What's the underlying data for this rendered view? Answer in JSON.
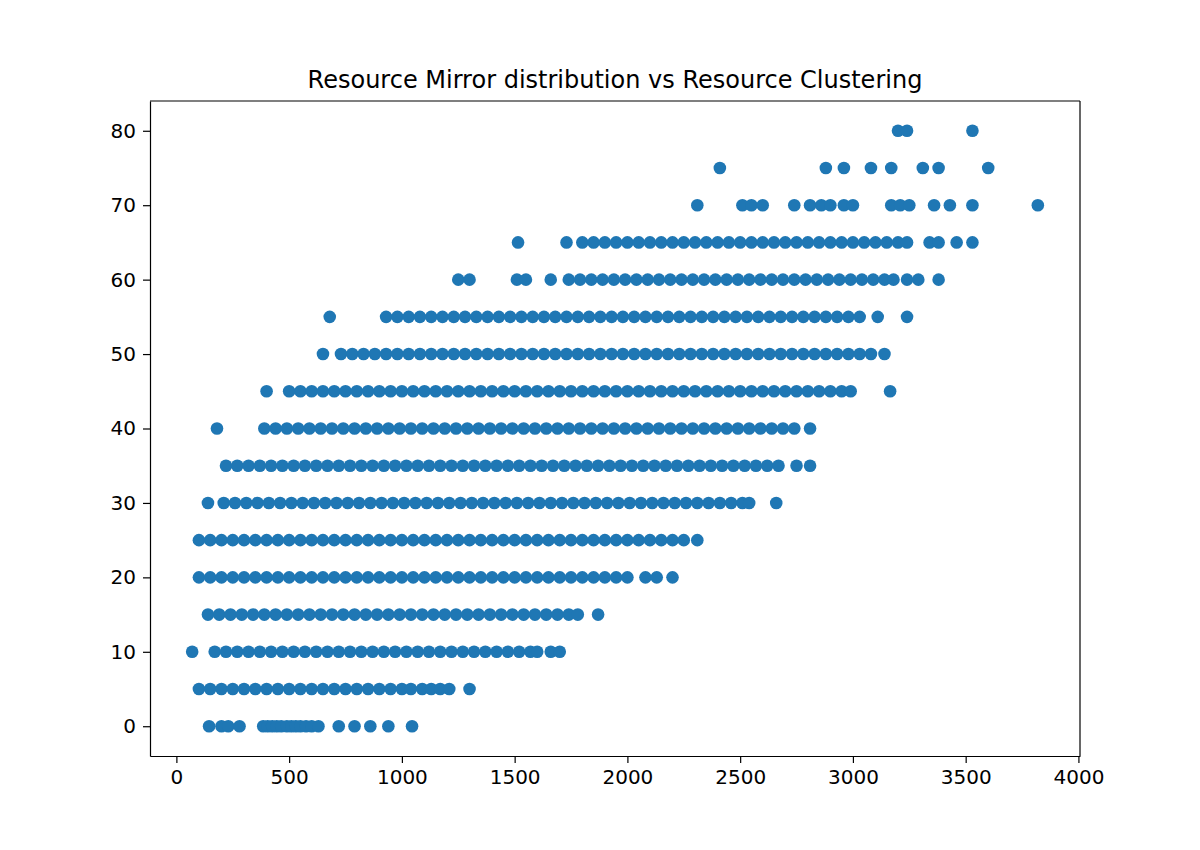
{
  "chart_data": {
    "type": "scatter",
    "title": "Resource Mirror distribution vs Resource Clustering",
    "color": "#1f77b4",
    "marker": "circle",
    "grid": false,
    "xlim": [
      -117,
      4007
    ],
    "ylim": [
      -4,
      84
    ],
    "xticks": [
      0,
      500,
      1000,
      1500,
      2000,
      2500,
      3000,
      3500,
      4000
    ],
    "yticks": [
      0,
      10,
      20,
      30,
      40,
      50,
      60,
      70,
      80
    ],
    "x": [
      145,
      200,
      230,
      280,
      385,
      405,
      425,
      445,
      465,
      490,
      510,
      530,
      550,
      575,
      600,
      630,
      720,
      790,
      860,
      940,
      1045,
      100,
      150,
      200,
      250,
      300,
      350,
      400,
      450,
      500,
      550,
      600,
      650,
      700,
      750,
      800,
      850,
      900,
      950,
      1000,
      1040,
      1090,
      1130,
      1170,
      1210,
      1300,
      70,
      170,
      220,
      270,
      320,
      370,
      420,
      470,
      520,
      570,
      620,
      670,
      720,
      770,
      820,
      870,
      920,
      970,
      1020,
      1070,
      1120,
      1170,
      1220,
      1270,
      1320,
      1370,
      1420,
      1470,
      1520,
      1570,
      1600,
      1660,
      1700,
      140,
      190,
      240,
      290,
      340,
      390,
      440,
      490,
      540,
      590,
      640,
      690,
      740,
      790,
      840,
      890,
      940,
      990,
      1040,
      1090,
      1140,
      1190,
      1240,
      1290,
      1340,
      1390,
      1440,
      1490,
      1540,
      1590,
      1640,
      1690,
      1740,
      1780,
      1870,
      100,
      150,
      200,
      250,
      300,
      350,
      400,
      450,
      500,
      550,
      600,
      650,
      700,
      750,
      800,
      850,
      900,
      950,
      1000,
      1050,
      1100,
      1150,
      1200,
      1250,
      1300,
      1350,
      1400,
      1450,
      1500,
      1550,
      1600,
      1650,
      1700,
      1750,
      1800,
      1850,
      1900,
      1950,
      2000,
      2080,
      2130,
      2200,
      100,
      150,
      200,
      250,
      300,
      350,
      400,
      450,
      500,
      550,
      600,
      650,
      700,
      750,
      800,
      850,
      900,
      950,
      1000,
      1050,
      1100,
      1150,
      1200,
      1250,
      1300,
      1350,
      1400,
      1450,
      1500,
      1550,
      1600,
      1650,
      1700,
      1750,
      1800,
      1850,
      1900,
      1950,
      2000,
      2050,
      2100,
      2150,
      2200,
      2250,
      2310,
      140,
      210,
      260,
      310,
      360,
      410,
      460,
      510,
      560,
      610,
      660,
      710,
      760,
      810,
      860,
      910,
      960,
      1010,
      1060,
      1110,
      1160,
      1210,
      1260,
      1310,
      1360,
      1410,
      1460,
      1510,
      1560,
      1610,
      1660,
      1710,
      1760,
      1810,
      1860,
      1910,
      1960,
      2010,
      2060,
      2110,
      2160,
      2210,
      2260,
      2310,
      2360,
      2410,
      2460,
      2510,
      2540,
      2660,
      220,
      270,
      320,
      370,
      420,
      470,
      520,
      570,
      620,
      670,
      720,
      770,
      820,
      870,
      920,
      970,
      1020,
      1070,
      1120,
      1170,
      1220,
      1270,
      1320,
      1370,
      1420,
      1470,
      1520,
      1570,
      1620,
      1670,
      1720,
      1770,
      1820,
      1870,
      1920,
      1970,
      2020,
      2070,
      2120,
      2170,
      2220,
      2270,
      2320,
      2370,
      2420,
      2470,
      2520,
      2570,
      2620,
      2670,
      2750,
      2810,
      180,
      390,
      440,
      490,
      540,
      590,
      640,
      690,
      740,
      790,
      840,
      890,
      940,
      990,
      1040,
      1090,
      1140,
      1190,
      1240,
      1290,
      1340,
      1390,
      1440,
      1490,
      1540,
      1590,
      1640,
      1690,
      1740,
      1790,
      1840,
      1890,
      1940,
      1990,
      2040,
      2090,
      2140,
      2190,
      2240,
      2290,
      2340,
      2390,
      2440,
      2490,
      2540,
      2590,
      2640,
      2690,
      2740,
      2810,
      400,
      500,
      550,
      600,
      650,
      700,
      750,
      800,
      850,
      900,
      950,
      1000,
      1050,
      1100,
      1150,
      1200,
      1250,
      1300,
      1350,
      1400,
      1450,
      1500,
      1550,
      1600,
      1650,
      1700,
      1750,
      1800,
      1850,
      1900,
      1950,
      2000,
      2050,
      2100,
      2150,
      2200,
      2250,
      2300,
      2350,
      2400,
      2450,
      2500,
      2550,
      2600,
      2650,
      2700,
      2750,
      2800,
      2850,
      2900,
      2950,
      2990,
      3165,
      650,
      730,
      780,
      830,
      880,
      930,
      980,
      1030,
      1080,
      1130,
      1180,
      1230,
      1280,
      1330,
      1380,
      1430,
      1480,
      1530,
      1580,
      1630,
      1680,
      1730,
      1780,
      1830,
      1880,
      1930,
      1980,
      2030,
      2080,
      2130,
      2180,
      2230,
      2280,
      2330,
      2380,
      2430,
      2480,
      2530,
      2580,
      2630,
      2680,
      2730,
      2780,
      2830,
      2880,
      2930,
      2980,
      3030,
      3080,
      3140,
      680,
      930,
      980,
      1030,
      1080,
      1130,
      1180,
      1230,
      1280,
      1330,
      1380,
      1430,
      1480,
      1530,
      1580,
      1630,
      1680,
      1730,
      1780,
      1830,
      1880,
      1930,
      1980,
      2030,
      2080,
      2130,
      2180,
      2230,
      2280,
      2330,
      2380,
      2430,
      2480,
      2530,
      2580,
      2630,
      2680,
      2730,
      2780,
      2830,
      2880,
      2930,
      2980,
      3030,
      3110,
      3240,
      1250,
      1300,
      1510,
      1550,
      1660,
      1740,
      1790,
      1840,
      1890,
      1940,
      1990,
      2040,
      2090,
      2140,
      2190,
      2240,
      2290,
      2340,
      2390,
      2440,
      2490,
      2540,
      2590,
      2640,
      2690,
      2740,
      2790,
      2840,
      2890,
      2940,
      2990,
      3040,
      3090,
      3140,
      3180,
      3240,
      3290,
      3380,
      1515,
      1730,
      1800,
      1850,
      1900,
      1950,
      2000,
      2050,
      2100,
      2150,
      2200,
      2250,
      2300,
      2350,
      2400,
      2450,
      2500,
      2550,
      2600,
      2650,
      2700,
      2750,
      2800,
      2850,
      2900,
      2950,
      3000,
      3050,
      3100,
      3150,
      3200,
      3240,
      3340,
      3380,
      3460,
      3530,
      2310,
      2510,
      2550,
      2600,
      2740,
      2810,
      2860,
      2900,
      2960,
      3000,
      3170,
      3210,
      3250,
      3360,
      3430,
      3530,
      3820,
      2410,
      2880,
      2960,
      3080,
      3170,
      3310,
      3380,
      3600,
      3200,
      3240,
      3530
    ],
    "values": [
      0,
      0,
      0,
      0,
      0,
      0,
      0,
      0,
      0,
      0,
      0,
      0,
      0,
      0,
      0,
      0,
      0,
      0,
      0,
      0,
      0,
      5,
      5,
      5,
      5,
      5,
      5,
      5,
      5,
      5,
      5,
      5,
      5,
      5,
      5,
      5,
      5,
      5,
      5,
      5,
      5,
      5,
      5,
      5,
      5,
      5,
      10,
      10,
      10,
      10,
      10,
      10,
      10,
      10,
      10,
      10,
      10,
      10,
      10,
      10,
      10,
      10,
      10,
      10,
      10,
      10,
      10,
      10,
      10,
      10,
      10,
      10,
      10,
      10,
      10,
      10,
      10,
      10,
      10,
      15,
      15,
      15,
      15,
      15,
      15,
      15,
      15,
      15,
      15,
      15,
      15,
      15,
      15,
      15,
      15,
      15,
      15,
      15,
      15,
      15,
      15,
      15,
      15,
      15,
      15,
      15,
      15,
      15,
      15,
      15,
      15,
      15,
      15,
      15,
      20,
      20,
      20,
      20,
      20,
      20,
      20,
      20,
      20,
      20,
      20,
      20,
      20,
      20,
      20,
      20,
      20,
      20,
      20,
      20,
      20,
      20,
      20,
      20,
      20,
      20,
      20,
      20,
      20,
      20,
      20,
      20,
      20,
      20,
      20,
      20,
      20,
      20,
      20,
      20,
      20,
      20,
      25,
      25,
      25,
      25,
      25,
      25,
      25,
      25,
      25,
      25,
      25,
      25,
      25,
      25,
      25,
      25,
      25,
      25,
      25,
      25,
      25,
      25,
      25,
      25,
      25,
      25,
      25,
      25,
      25,
      25,
      25,
      25,
      25,
      25,
      25,
      25,
      25,
      25,
      25,
      25,
      25,
      25,
      25,
      25,
      25,
      30,
      30,
      30,
      30,
      30,
      30,
      30,
      30,
      30,
      30,
      30,
      30,
      30,
      30,
      30,
      30,
      30,
      30,
      30,
      30,
      30,
      30,
      30,
      30,
      30,
      30,
      30,
      30,
      30,
      30,
      30,
      30,
      30,
      30,
      30,
      30,
      30,
      30,
      30,
      30,
      30,
      30,
      30,
      30,
      30,
      30,
      30,
      30,
      30,
      30,
      35,
      35,
      35,
      35,
      35,
      35,
      35,
      35,
      35,
      35,
      35,
      35,
      35,
      35,
      35,
      35,
      35,
      35,
      35,
      35,
      35,
      35,
      35,
      35,
      35,
      35,
      35,
      35,
      35,
      35,
      35,
      35,
      35,
      35,
      35,
      35,
      35,
      35,
      35,
      35,
      35,
      35,
      35,
      35,
      35,
      35,
      35,
      35,
      35,
      35,
      35,
      35,
      40,
      40,
      40,
      40,
      40,
      40,
      40,
      40,
      40,
      40,
      40,
      40,
      40,
      40,
      40,
      40,
      40,
      40,
      40,
      40,
      40,
      40,
      40,
      40,
      40,
      40,
      40,
      40,
      40,
      40,
      40,
      40,
      40,
      40,
      40,
      40,
      40,
      40,
      40,
      40,
      40,
      40,
      40,
      40,
      40,
      40,
      40,
      40,
      40,
      40,
      45,
      45,
      45,
      45,
      45,
      45,
      45,
      45,
      45,
      45,
      45,
      45,
      45,
      45,
      45,
      45,
      45,
      45,
      45,
      45,
      45,
      45,
      45,
      45,
      45,
      45,
      45,
      45,
      45,
      45,
      45,
      45,
      45,
      45,
      45,
      45,
      45,
      45,
      45,
      45,
      45,
      45,
      45,
      45,
      45,
      45,
      45,
      45,
      45,
      45,
      45,
      45,
      45,
      50,
      50,
      50,
      50,
      50,
      50,
      50,
      50,
      50,
      50,
      50,
      50,
      50,
      50,
      50,
      50,
      50,
      50,
      50,
      50,
      50,
      50,
      50,
      50,
      50,
      50,
      50,
      50,
      50,
      50,
      50,
      50,
      50,
      50,
      50,
      50,
      50,
      50,
      50,
      50,
      50,
      50,
      50,
      50,
      50,
      50,
      50,
      50,
      50,
      50,
      55,
      55,
      55,
      55,
      55,
      55,
      55,
      55,
      55,
      55,
      55,
      55,
      55,
      55,
      55,
      55,
      55,
      55,
      55,
      55,
      55,
      55,
      55,
      55,
      55,
      55,
      55,
      55,
      55,
      55,
      55,
      55,
      55,
      55,
      55,
      55,
      55,
      55,
      55,
      55,
      55,
      55,
      55,
      55,
      55,
      55,
      60,
      60,
      60,
      60,
      60,
      60,
      60,
      60,
      60,
      60,
      60,
      60,
      60,
      60,
      60,
      60,
      60,
      60,
      60,
      60,
      60,
      60,
      60,
      60,
      60,
      60,
      60,
      60,
      60,
      60,
      60,
      60,
      60,
      60,
      60,
      60,
      60,
      60,
      65,
      65,
      65,
      65,
      65,
      65,
      65,
      65,
      65,
      65,
      65,
      65,
      65,
      65,
      65,
      65,
      65,
      65,
      65,
      65,
      65,
      65,
      65,
      65,
      65,
      65,
      65,
      65,
      65,
      65,
      65,
      65,
      65,
      65,
      65,
      65,
      70,
      70,
      70,
      70,
      70,
      70,
      70,
      70,
      70,
      70,
      70,
      70,
      70,
      70,
      70,
      70,
      70,
      75,
      75,
      75,
      75,
      75,
      75,
      75,
      75,
      80,
      80,
      80
    ]
  }
}
